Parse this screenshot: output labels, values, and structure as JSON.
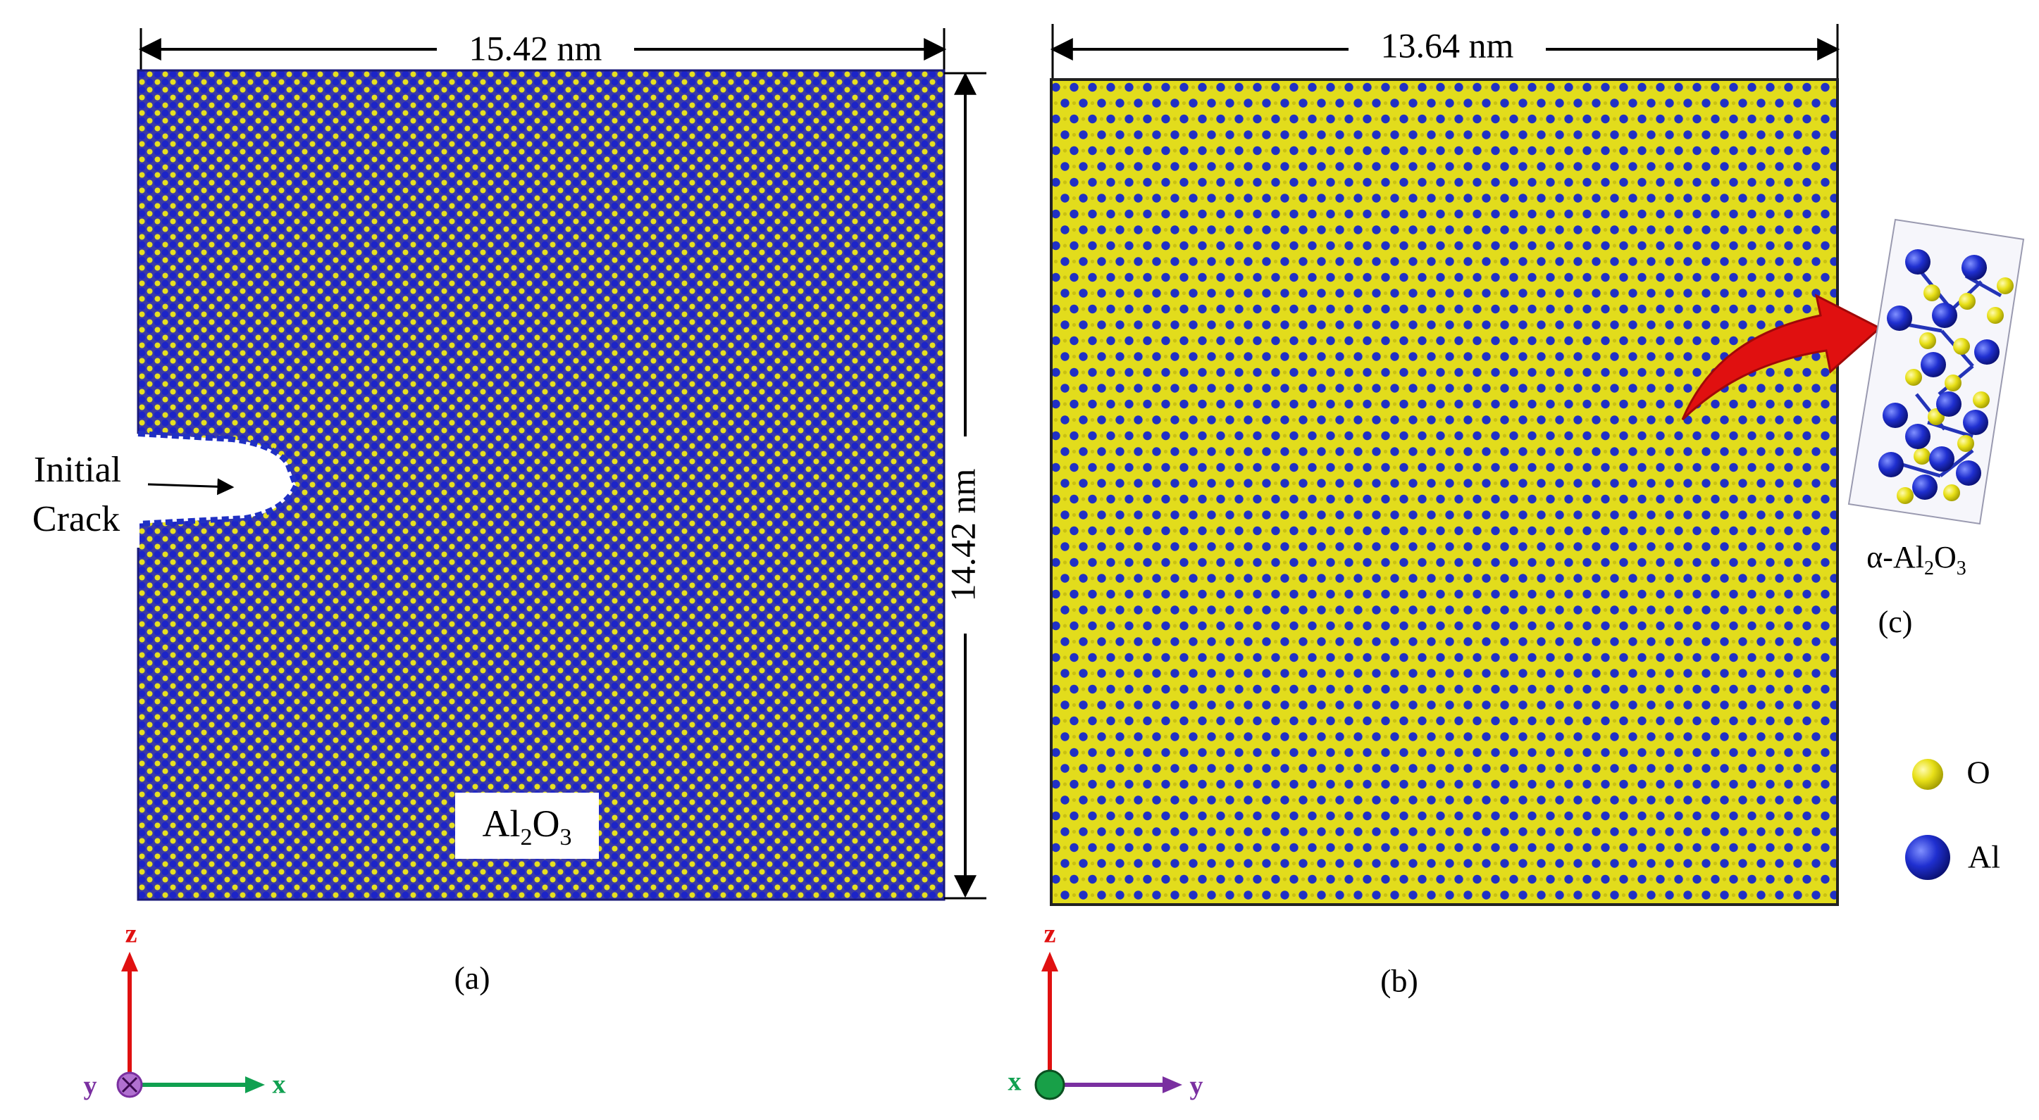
{
  "panel_a": {
    "width_label": "15.42 nm",
    "height_label": "14.42 nm",
    "crack_label_line1": "Initial",
    "crack_label_line2": "Crack",
    "material_label": {
      "base": "Al",
      "sub1": "2",
      "mid": "O",
      "sub2": "3"
    },
    "caption": "(a)"
  },
  "panel_b": {
    "width_label": "13.64 nm",
    "caption": "(b)"
  },
  "panel_c": {
    "unit_cell_label": {
      "prefix": "α-Al",
      "sub1": "2",
      "mid": "O",
      "sub2": "3"
    },
    "caption": "(c)"
  },
  "legend": [
    {
      "label": "O",
      "color": "#e8e018"
    },
    {
      "label": "Al",
      "color": "#1f2fd0"
    }
  ],
  "axes_a": {
    "vertical": "z",
    "horizontal": "x",
    "normal": "y"
  },
  "axes_b": {
    "vertical": "z",
    "horizontal": "y",
    "normal": "x"
  },
  "colors": {
    "oxygen": "#e8e018",
    "aluminum": "#1f2fd0",
    "axis_red": "#e01010",
    "axis_green": "#10a050",
    "axis_purple": "#7a2fa0",
    "arrow_red": "#e01010"
  }
}
